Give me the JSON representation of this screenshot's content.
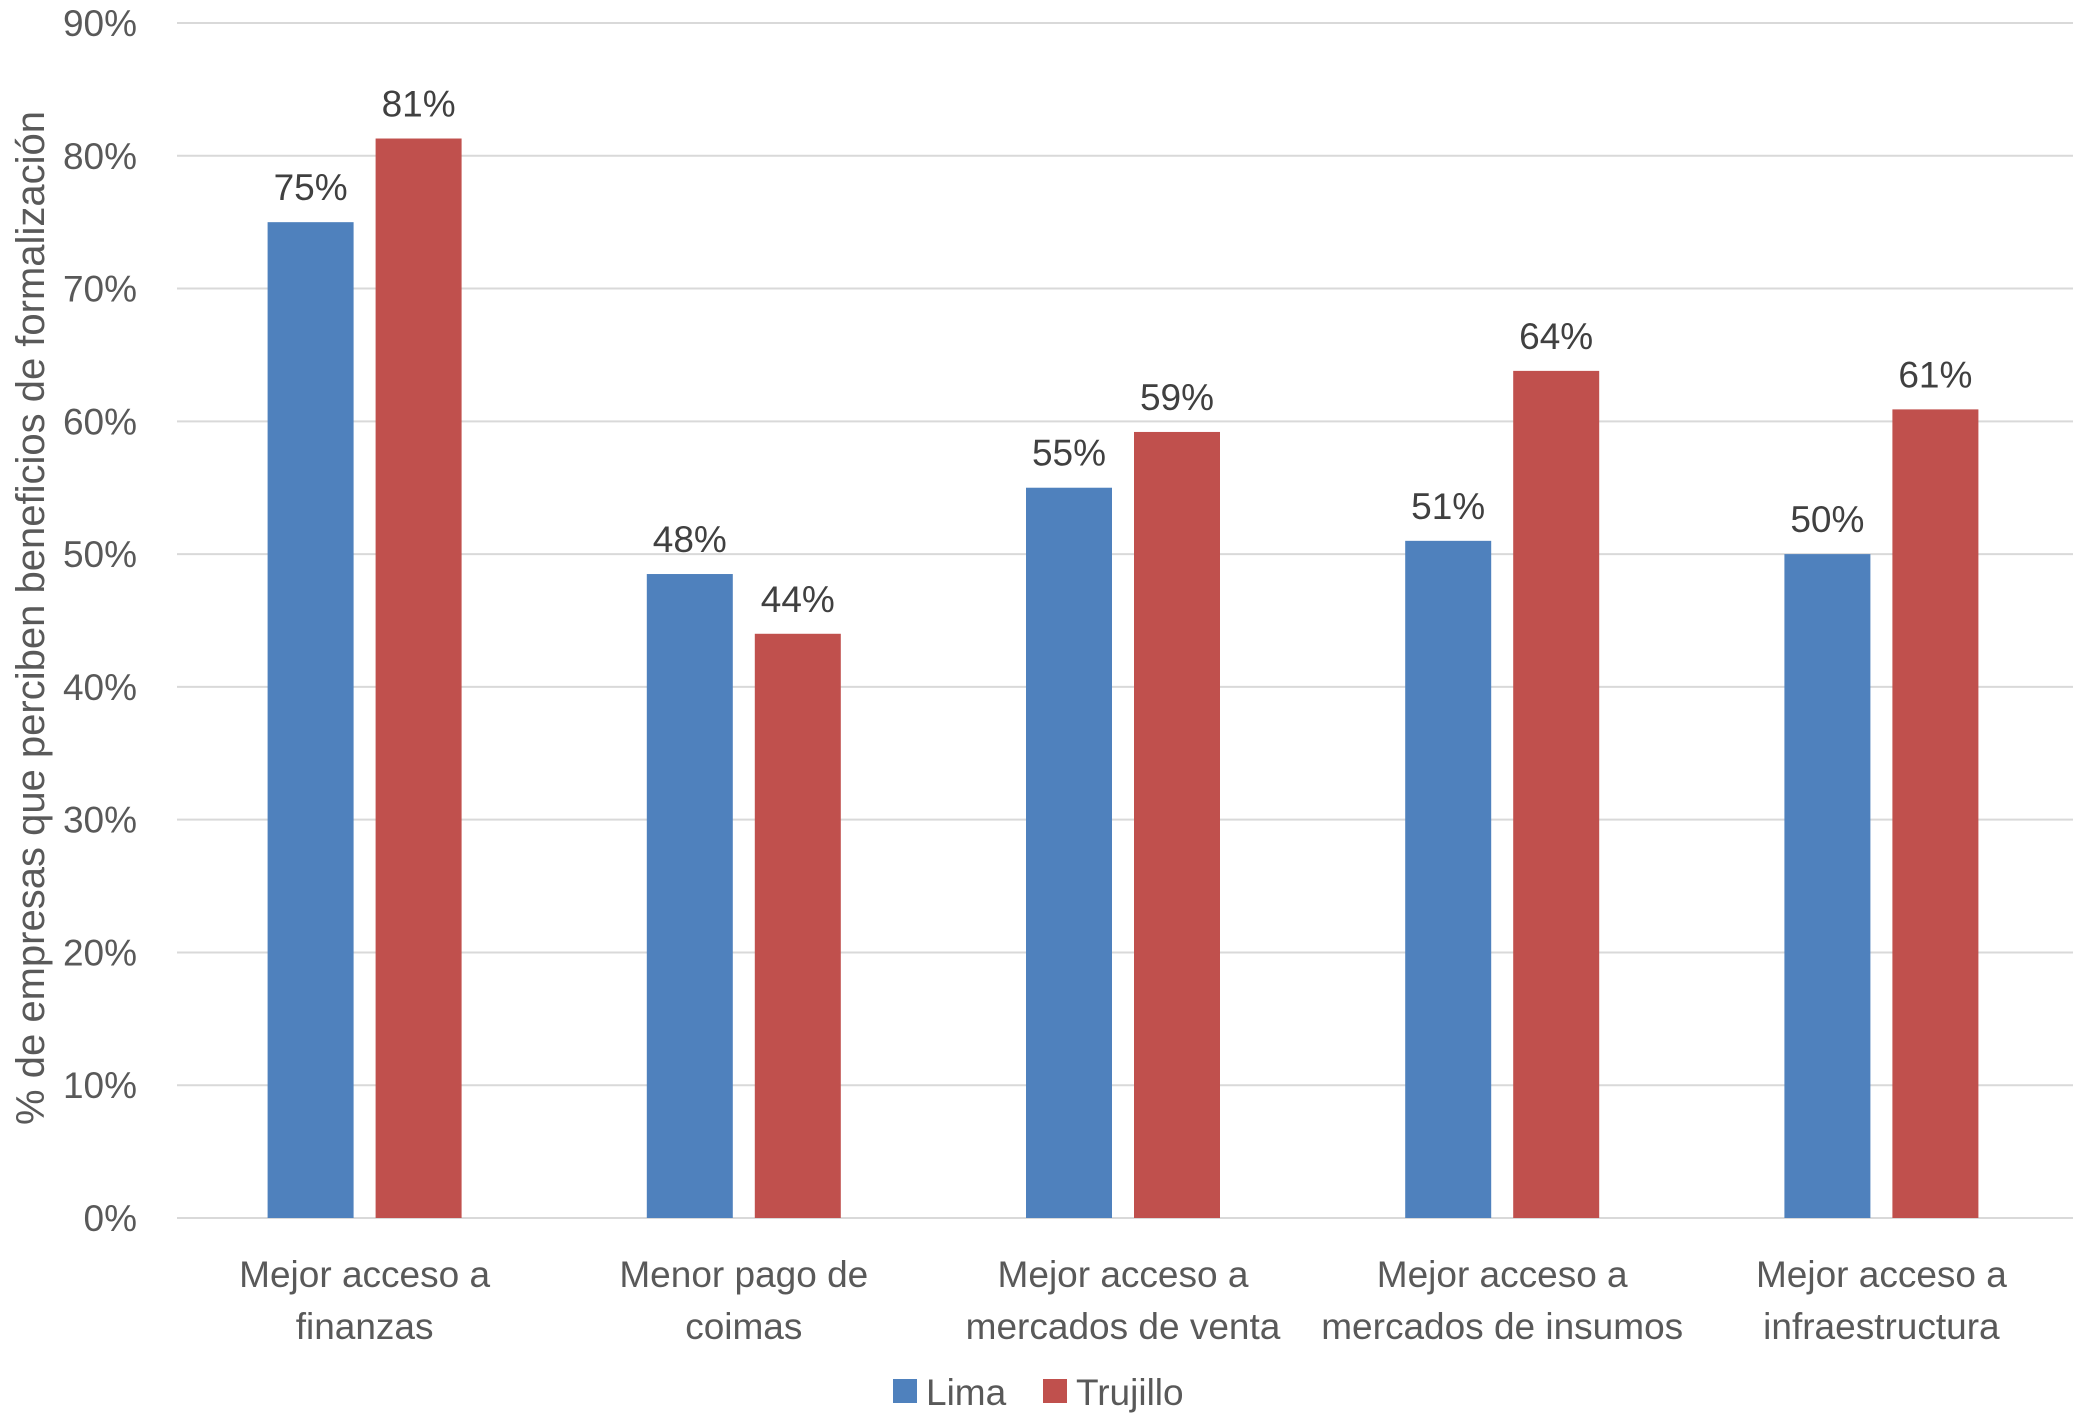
{
  "chart_data": {
    "type": "bar",
    "title": "",
    "xlabel": "",
    "ylabel": "% de empresas que perciben beneficios de formalización",
    "ylim": [
      0,
      90
    ],
    "yticks": [
      "0%",
      "10%",
      "20%",
      "30%",
      "40%",
      "50%",
      "60%",
      "70%",
      "80%",
      "90%"
    ],
    "grid": true,
    "legend_position": "bottom-center",
    "categories": [
      [
        "Mejor acceso a",
        "finanzas"
      ],
      [
        "Menor pago de",
        "coimas"
      ],
      [
        "Mejor acceso a",
        "mercados de venta"
      ],
      [
        "Mejor acceso a",
        "mercados de insumos"
      ],
      [
        "Mejor acceso a",
        "infraestructura"
      ]
    ],
    "series": [
      {
        "name": "Lima",
        "color": "#4f81bd",
        "values": [
          75,
          48.5,
          55,
          51,
          50
        ],
        "labels": [
          "75%",
          "48%",
          "55%",
          "51%",
          "50%"
        ]
      },
      {
        "name": "Trujillo",
        "color": "#c0504d",
        "values": [
          81.3,
          44,
          59.2,
          63.8,
          60.9
        ],
        "labels": [
          "81%",
          "44%",
          "59%",
          "64%",
          "61%"
        ]
      }
    ]
  }
}
